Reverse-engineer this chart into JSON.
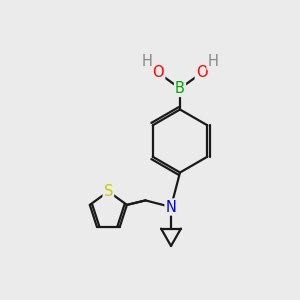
{
  "background_color": "#ebebeb",
  "atom_colors": {
    "B": "#00aa00",
    "O": "#ff0000",
    "H": "#888888",
    "N": "#0000ee",
    "S": "#cccc00",
    "C": "#000000"
  },
  "bond_color": "#1a1a1a",
  "bond_width": 1.6,
  "font_size_atoms": 10.5
}
